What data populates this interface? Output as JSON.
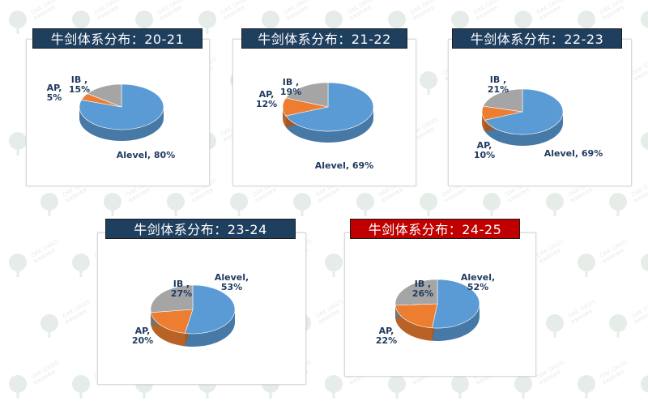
{
  "colors": {
    "alevel": "#5b9bd5",
    "ap": "#ed7d31",
    "ib": "#a5a5a5",
    "title_bg_default": "#1f3f5f",
    "title_bg_highlight": "#c00000",
    "watermark": "#8fae9a"
  },
  "watermark": {
    "brand": "OAK OASIS",
    "sub": "橡果国际教育"
  },
  "chart_data": [
    {
      "type": "pie",
      "title": "牛剑体系分布：20-21",
      "series": [
        {
          "categories": [
            "Alevel",
            "AP",
            "IB"
          ],
          "values": [
            80,
            5,
            15
          ]
        }
      ],
      "labels": [
        "Alevel, 80%",
        "AP,\n5%",
        "IB ,\n15%"
      ]
    },
    {
      "type": "pie",
      "title": "牛剑体系分布：21-22",
      "series": [
        {
          "categories": [
            "Alevel",
            "AP",
            "IB"
          ],
          "values": [
            69,
            12,
            19
          ]
        }
      ],
      "labels": [
        "Alevel, 69%",
        "AP,\n12%",
        "IB ,\n19%"
      ]
    },
    {
      "type": "pie",
      "title": "牛剑体系分布：22-23",
      "series": [
        {
          "categories": [
            "Alevel",
            "AP",
            "IB"
          ],
          "values": [
            69,
            10,
            21
          ]
        }
      ],
      "labels": [
        "Alevel, 69%",
        "AP,\n10%",
        "IB ,\n21%"
      ]
    },
    {
      "type": "pie",
      "title": "牛剑体系分布：23-24",
      "series": [
        {
          "categories": [
            "Alevel",
            "AP",
            "IB"
          ],
          "values": [
            53,
            20,
            27
          ]
        }
      ],
      "labels": [
        "Alevel,\n53%",
        "AP,\n20%",
        "IB ,\n27%"
      ]
    },
    {
      "type": "pie",
      "title": "牛剑体系分布：24-25",
      "series": [
        {
          "categories": [
            "Alevel",
            "AP",
            "IB"
          ],
          "values": [
            52,
            22,
            26
          ]
        }
      ],
      "labels": [
        "Alevel,\n52%",
        "AP,\n22%",
        "IB ,\n26%"
      ],
      "highlight": true
    }
  ]
}
